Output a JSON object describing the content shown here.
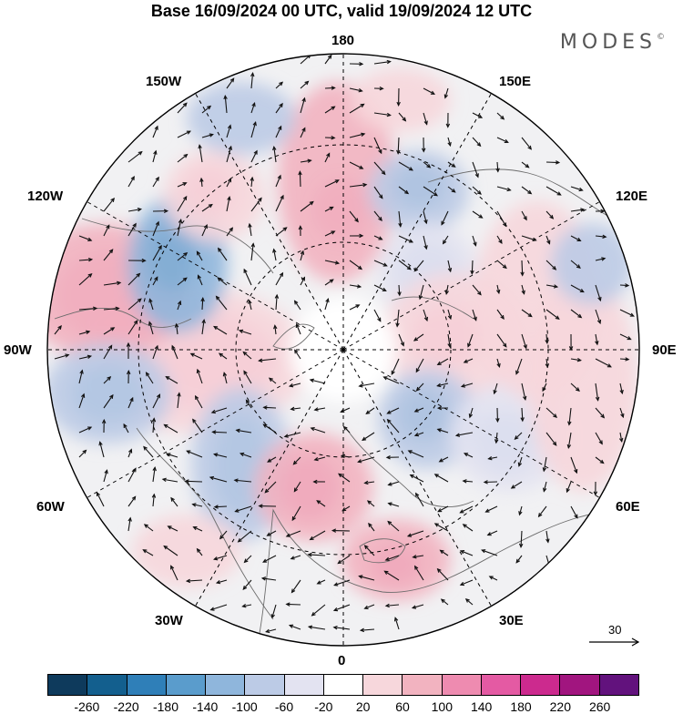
{
  "title": "Base 16/09/2024 00 UTC, valid 19/09/2024 12 UTC",
  "logo": "MODES",
  "logo_mark": "©",
  "longitude_labels": {
    "top": "180",
    "bottom": "0",
    "left": "90W",
    "right": "90E",
    "upper_left_1": "150W",
    "upper_left_2": "120W",
    "upper_right_1": "150E",
    "upper_right_2": "120E",
    "lower_left_1": "60W",
    "lower_left_2": "30W",
    "lower_right_1": "60E",
    "lower_right_2": "30E"
  },
  "reference_vector_label": "30",
  "colorbar": {
    "colors": [
      "#0e3a5c",
      "#135f8e",
      "#2f7fb8",
      "#5a9ccc",
      "#8fb6dc",
      "#bccbe6",
      "#e3e3f1",
      "#ffffff",
      "#f7d7dc",
      "#f2b3c0",
      "#ee8bb0",
      "#e45aa3",
      "#cc2a8e",
      "#a1157f",
      "#62127d"
    ],
    "tick_labels": [
      "-260",
      "-220",
      "-180",
      "-140",
      "-100",
      "-60",
      "-20",
      "20",
      "60",
      "100",
      "140",
      "180",
      "220",
      "260"
    ]
  }
}
